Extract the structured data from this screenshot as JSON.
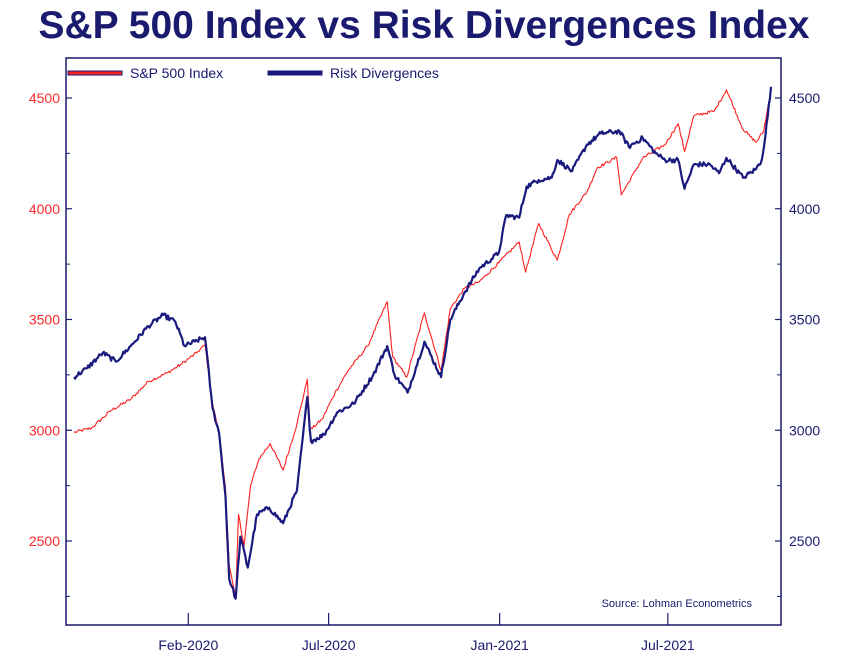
{
  "chart_data": {
    "type": "line",
    "title": "S&P 500 Index vs Risk Divergences Index",
    "xlabel": "",
    "ylabel": "",
    "x_start": "2019-10-01",
    "x_end": "2021-10-20",
    "x_ticks": [
      {
        "date": "2020-02-01",
        "label": "Feb-2020"
      },
      {
        "date": "2020-07-01",
        "label": "Jul-2020"
      },
      {
        "date": "2021-01-01",
        "label": "Jan-2021"
      },
      {
        "date": "2021-07-01",
        "label": "Jul-2021"
      }
    ],
    "ylim": [
      2150,
      4600
    ],
    "y_ticks_left": [
      2500,
      3000,
      3500,
      4000,
      4500
    ],
    "y_ticks_right": [
      2500,
      3000,
      3500,
      4000,
      4500
    ],
    "legend": [
      {
        "name": "S&P 500 Index",
        "color": "#ff2020"
      },
      {
        "name": "Risk Divergences",
        "color": "#1a1a7e"
      }
    ],
    "annotation": "Source: Lohman Econometrics",
    "series": [
      {
        "name": "S&P 500 Index",
        "color": "#ff2020",
        "points": [
          [
            "2019-10-01",
            2990
          ],
          [
            "2019-10-20",
            3010
          ],
          [
            "2019-11-10",
            3090
          ],
          [
            "2019-12-01",
            3140
          ],
          [
            "2019-12-20",
            3220
          ],
          [
            "2020-01-10",
            3260
          ],
          [
            "2020-01-25",
            3300
          ],
          [
            "2020-02-10",
            3350
          ],
          [
            "2020-02-19",
            3386
          ],
          [
            "2020-02-27",
            3120
          ],
          [
            "2020-03-05",
            2990
          ],
          [
            "2020-03-12",
            2740
          ],
          [
            "2020-03-16",
            2390
          ],
          [
            "2020-03-23",
            2237
          ],
          [
            "2020-03-26",
            2620
          ],
          [
            "2020-04-01",
            2480
          ],
          [
            "2020-04-08",
            2750
          ],
          [
            "2020-04-17",
            2870
          ],
          [
            "2020-04-29",
            2940
          ],
          [
            "2020-05-13",
            2820
          ],
          [
            "2020-05-28",
            3030
          ],
          [
            "2020-06-08",
            3230
          ],
          [
            "2020-06-11",
            3000
          ],
          [
            "2020-06-24",
            3050
          ],
          [
            "2020-07-08",
            3170
          ],
          [
            "2020-07-22",
            3270
          ],
          [
            "2020-08-12",
            3380
          ],
          [
            "2020-09-02",
            3580
          ],
          [
            "2020-09-08",
            3330
          ],
          [
            "2020-09-23",
            3240
          ],
          [
            "2020-10-12",
            3530
          ],
          [
            "2020-10-30",
            3270
          ],
          [
            "2020-11-09",
            3550
          ],
          [
            "2020-11-24",
            3640
          ],
          [
            "2020-12-10",
            3670
          ],
          [
            "2020-12-31",
            3756
          ],
          [
            "2021-01-22",
            3850
          ],
          [
            "2021-01-29",
            3714
          ],
          [
            "2021-02-12",
            3934
          ],
          [
            "2021-03-04",
            3768
          ],
          [
            "2021-03-17",
            3974
          ],
          [
            "2021-04-05",
            4077
          ],
          [
            "2021-04-16",
            4185
          ],
          [
            "2021-05-07",
            4232
          ],
          [
            "2021-05-12",
            4063
          ],
          [
            "2021-06-04",
            4229
          ],
          [
            "2021-06-28",
            4290
          ],
          [
            "2021-07-12",
            4384
          ],
          [
            "2021-07-19",
            4258
          ],
          [
            "2021-07-29",
            4420
          ],
          [
            "2021-08-20",
            4441
          ],
          [
            "2021-09-02",
            4537
          ],
          [
            "2021-09-20",
            4358
          ],
          [
            "2021-10-04",
            4300
          ],
          [
            "2021-10-12",
            4350
          ],
          [
            "2021-10-20",
            4536
          ]
        ]
      },
      {
        "name": "Risk Divergences",
        "color": "#1a1a7e",
        "points": [
          [
            "2019-10-01",
            3240
          ],
          [
            "2019-10-15",
            3280
          ],
          [
            "2019-11-01",
            3350
          ],
          [
            "2019-11-15",
            3310
          ],
          [
            "2019-12-01",
            3380
          ],
          [
            "2019-12-20",
            3470
          ],
          [
            "2020-01-05",
            3520
          ],
          [
            "2020-01-18",
            3490
          ],
          [
            "2020-01-28",
            3380
          ],
          [
            "2020-02-08",
            3400
          ],
          [
            "2020-02-19",
            3420
          ],
          [
            "2020-02-27",
            3100
          ],
          [
            "2020-03-05",
            2990
          ],
          [
            "2020-03-12",
            2700
          ],
          [
            "2020-03-16",
            2330
          ],
          [
            "2020-03-23",
            2240
          ],
          [
            "2020-03-28",
            2520
          ],
          [
            "2020-04-05",
            2380
          ],
          [
            "2020-04-15",
            2620
          ],
          [
            "2020-04-28",
            2650
          ],
          [
            "2020-05-13",
            2580
          ],
          [
            "2020-05-28",
            2730
          ],
          [
            "2020-06-08",
            3150
          ],
          [
            "2020-06-12",
            2950
          ],
          [
            "2020-06-26",
            2980
          ],
          [
            "2020-07-10",
            3080
          ],
          [
            "2020-07-28",
            3120
          ],
          [
            "2020-08-18",
            3250
          ],
          [
            "2020-09-02",
            3380
          ],
          [
            "2020-09-10",
            3250
          ],
          [
            "2020-09-24",
            3170
          ],
          [
            "2020-10-12",
            3400
          ],
          [
            "2020-10-30",
            3240
          ],
          [
            "2020-11-09",
            3500
          ],
          [
            "2020-11-24",
            3620
          ],
          [
            "2020-12-10",
            3730
          ],
          [
            "2020-12-31",
            3800
          ],
          [
            "2021-01-08",
            3970
          ],
          [
            "2021-01-22",
            3960
          ],
          [
            "2021-01-30",
            4100
          ],
          [
            "2021-02-12",
            4130
          ],
          [
            "2021-02-26",
            4140
          ],
          [
            "2021-03-04",
            4220
          ],
          [
            "2021-03-20",
            4170
          ],
          [
            "2021-04-05",
            4290
          ],
          [
            "2021-04-20",
            4340
          ],
          [
            "2021-05-10",
            4350
          ],
          [
            "2021-05-20",
            4280
          ],
          [
            "2021-06-04",
            4320
          ],
          [
            "2021-06-18",
            4250
          ],
          [
            "2021-06-28",
            4220
          ],
          [
            "2021-07-12",
            4220
          ],
          [
            "2021-07-19",
            4090
          ],
          [
            "2021-07-29",
            4200
          ],
          [
            "2021-08-15",
            4200
          ],
          [
            "2021-08-25",
            4160
          ],
          [
            "2021-09-02",
            4230
          ],
          [
            "2021-09-20",
            4140
          ],
          [
            "2021-10-04",
            4180
          ],
          [
            "2021-10-10",
            4220
          ],
          [
            "2021-10-14",
            4330
          ],
          [
            "2021-10-20",
            4550
          ]
        ]
      }
    ]
  }
}
